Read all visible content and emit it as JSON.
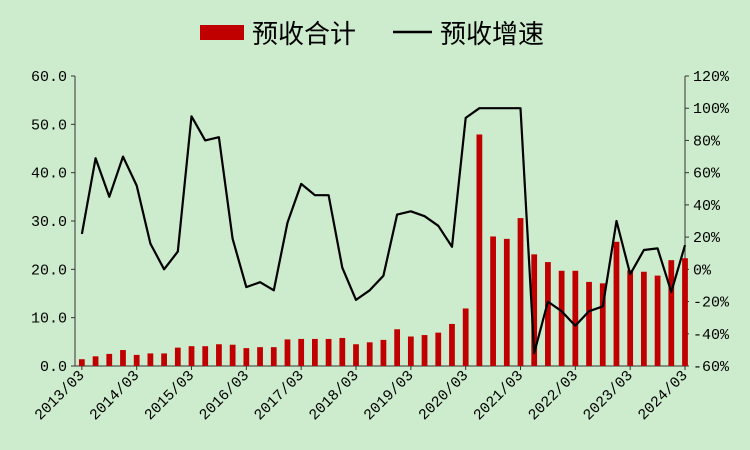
{
  "chart_data": {
    "type": "bar+line",
    "legend": {
      "position": "top",
      "bar_label": "预收合计",
      "line_label": "预收增速"
    },
    "colors": {
      "bar": "#c00000",
      "line": "#000000",
      "background": "#cdebcd"
    },
    "x_tick_labels": [
      "2013/03",
      "2014/03",
      "2015/03",
      "2016/03",
      "2017/03",
      "2018/03",
      "2019/03",
      "2020/03",
      "2021/03",
      "2022/03",
      "2023/03",
      "2024/03"
    ],
    "y_left": {
      "ticks": [
        "0.0",
        "10.0",
        "20.0",
        "30.0",
        "40.0",
        "50.0",
        "60.0"
      ],
      "range": [
        0,
        60
      ]
    },
    "y_right": {
      "ticks": [
        "-60%",
        "-40%",
        "-20%",
        "0%",
        "20%",
        "40%",
        "60%",
        "80%",
        "100%",
        "120%"
      ],
      "range": [
        -60,
        120
      ]
    },
    "series": [
      {
        "name": "预收合计",
        "type": "bar",
        "axis": "left",
        "values": [
          1.4,
          2.0,
          2.5,
          3.3,
          2.3,
          2.6,
          2.6,
          3.8,
          4.1,
          4.1,
          4.5,
          4.4,
          3.7,
          3.9,
          3.9,
          5.5,
          5.6,
          5.6,
          5.6,
          5.8,
          4.5,
          4.9,
          5.4,
          7.6,
          6.1,
          6.4,
          6.9,
          8.7,
          11.9,
          47.9,
          26.8,
          26.3,
          30.6,
          23.1,
          21.5,
          19.7,
          19.7,
          17.4,
          17.1,
          25.7,
          19.8,
          19.5,
          18.7,
          21.9,
          22.3
        ]
      },
      {
        "name": "预收增速",
        "type": "line",
        "axis": "right",
        "values": [
          22,
          69,
          45,
          70,
          52,
          16,
          0,
          11,
          95,
          80,
          82,
          19,
          -11,
          -8,
          -13,
          29,
          53,
          46,
          46,
          1,
          -19,
          -13,
          -4,
          34,
          36,
          33,
          27,
          14,
          94,
          100,
          100,
          100,
          100,
          -52,
          -20,
          -26,
          -35,
          -26,
          -23,
          30,
          -3,
          12,
          13,
          -14,
          15
        ]
      }
    ]
  }
}
